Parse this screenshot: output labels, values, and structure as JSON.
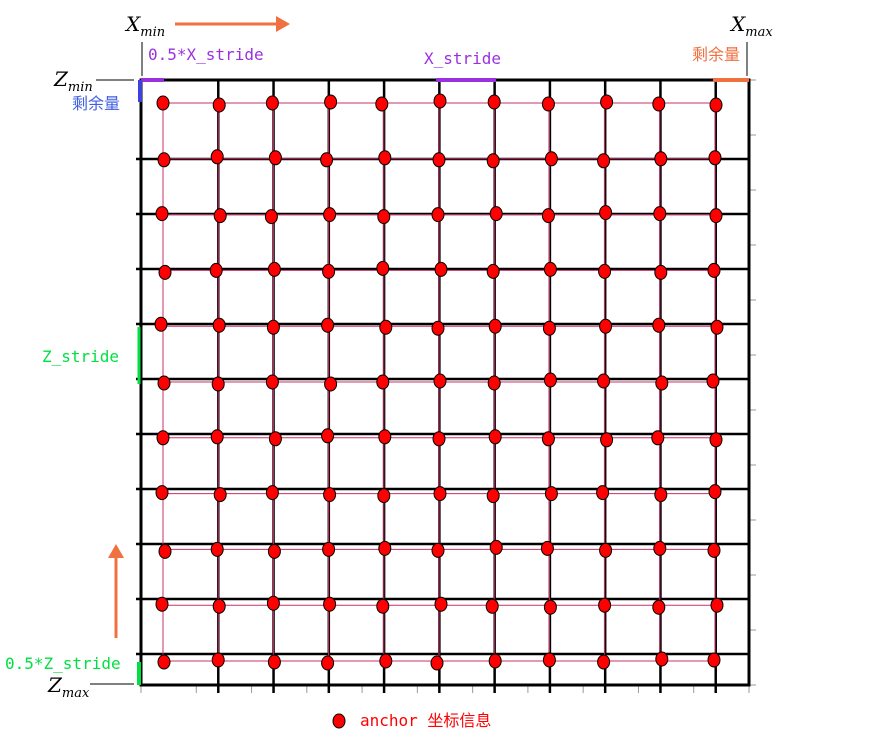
{
  "labels": {
    "x_min_base": "X",
    "x_min_sub": "min",
    "x_max_base": "X",
    "x_max_sub": "max",
    "z_min_base": "Z",
    "z_min_sub": "min",
    "z_max_base": "Z",
    "z_max_sub": "max",
    "half_x_stride": "0.5*X_stride",
    "x_stride": "X_stride",
    "remainder_top": "剩余量",
    "remainder_left": "剩余量",
    "z_stride": "Z_stride",
    "half_z_stride": "0.5*Z_stride"
  },
  "legend": {
    "label": "anchor 坐标信息"
  },
  "grid": {
    "columns": 11,
    "rows": 11,
    "tick_cells_x": 11,
    "tick_cells_z": 11
  },
  "colors": {
    "frame": "#000000",
    "grid_line": "#c8306a",
    "anchor_fill": "#ff0000",
    "anchor_stroke": "#000000",
    "x_arrow": "#f07040",
    "remainder_top": "#f07040",
    "remainder_left": "#4040e0",
    "x_stride": "#9b30e0",
    "z_stride": "#00e040",
    "z_arrow": "#f07040",
    "legend_text": "#ff0000"
  }
}
